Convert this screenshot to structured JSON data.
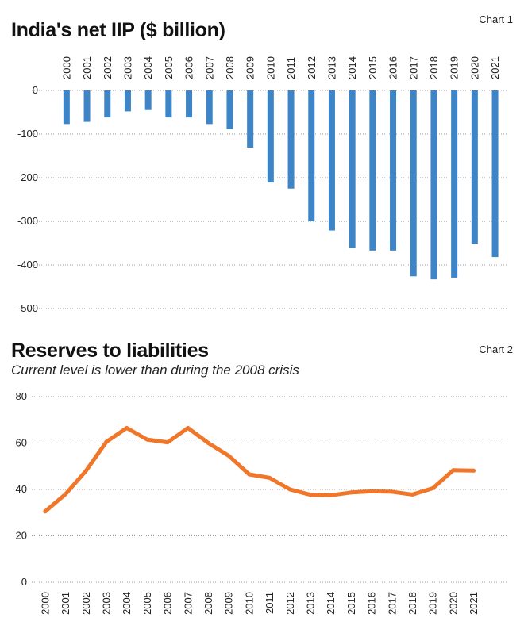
{
  "chart_data": [
    {
      "id": "chart1",
      "type": "bar",
      "tag": "Chart 1",
      "title": "India's net IIP ($ billion)",
      "categories": [
        "2000",
        "2001",
        "2002",
        "2003",
        "2004",
        "2005",
        "2006",
        "2007",
        "2008",
        "2009",
        "2010",
        "2011",
        "2012",
        "2013",
        "2014",
        "2015",
        "2016",
        "2017",
        "2018",
        "2019",
        "2020",
        "2021"
      ],
      "values": [
        -77,
        -72,
        -62,
        -48,
        -45,
        -62,
        -62,
        -77,
        -89,
        -131,
        -211,
        -225,
        -300,
        -321,
        -361,
        -367,
        -367,
        -426,
        -433,
        -429,
        -351,
        -382
      ],
      "ylim": [
        -500,
        0
      ],
      "yticks": [
        0,
        -100,
        -200,
        -300,
        -400,
        -500
      ],
      "grid": true,
      "color": "#3d85c6"
    },
    {
      "id": "chart2",
      "type": "line",
      "tag": "Chart 2",
      "title": "Reserves to liabilities",
      "subtitle": "Current level is lower than during the 2008 crisis",
      "categories": [
        "2000",
        "2001",
        "2002",
        "2003",
        "2004",
        "2005",
        "2006",
        "2007",
        "2008",
        "2009",
        "2010",
        "2011",
        "2012",
        "2013",
        "2014",
        "2015",
        "2016",
        "2017",
        "2018",
        "2019",
        "2020",
        "2021"
      ],
      "values": [
        30.5,
        38,
        48,
        60.5,
        66.5,
        61.5,
        60.3,
        66.5,
        60,
        54.5,
        46.5,
        45,
        40,
        37.7,
        37.5,
        38.7,
        39.2,
        39,
        37.8,
        40.5,
        48.3,
        48.1
      ],
      "ylim": [
        0,
        80
      ],
      "yticks": [
        0,
        20,
        40,
        60,
        80
      ],
      "grid": true,
      "color": "#f0772a"
    }
  ]
}
